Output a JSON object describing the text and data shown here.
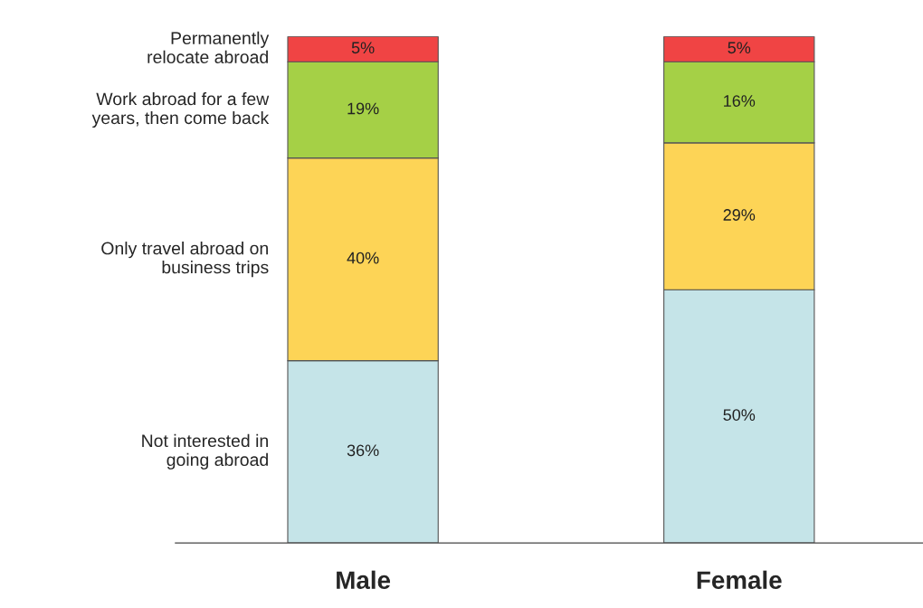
{
  "chart_data": {
    "type": "bar",
    "stacked": true,
    "categories": [
      "Male",
      "Female"
    ],
    "series": [
      {
        "name": "Not interested in\ngoing abroad",
        "color": "#c5e4e8",
        "values": [
          36,
          50
        ],
        "value_labels": [
          "36%",
          "50%"
        ]
      },
      {
        "name": "Only travel abroad on\nbusiness trips",
        "color": "#fdd456",
        "values": [
          40,
          29
        ],
        "value_labels": [
          "40%",
          "29%"
        ]
      },
      {
        "name": "Work abroad for a few\nyears, then come back",
        "color": "#a5d046",
        "values": [
          19,
          16
        ],
        "value_labels": [
          "19%",
          "16%"
        ]
      },
      {
        "name": "Permanently\nrelocate abroad",
        "color": "#f04444",
        "values": [
          5,
          5
        ],
        "value_labels": [
          "5%",
          "5%"
        ]
      }
    ],
    "legend": false
  }
}
